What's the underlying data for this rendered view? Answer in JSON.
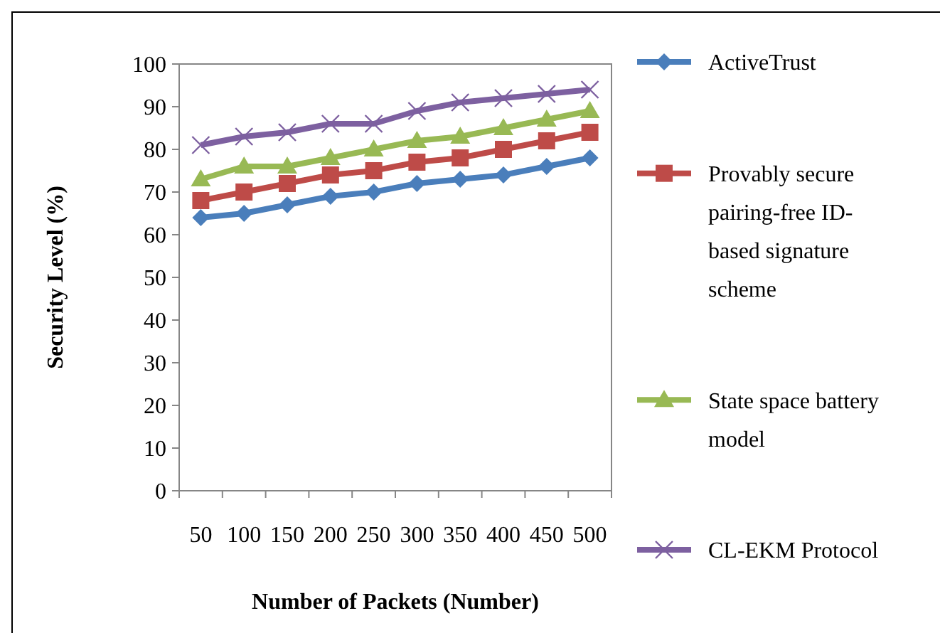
{
  "chart_data": {
    "type": "line",
    "xlabel": "Number of Packets (Number)",
    "ylabel": "Security Level (%)",
    "categories": [
      "50",
      "100",
      "150",
      "200",
      "250",
      "300",
      "350",
      "400",
      "450",
      "500"
    ],
    "ylim": [
      0,
      100
    ],
    "yticks": [
      0,
      10,
      20,
      30,
      40,
      50,
      60,
      70,
      80,
      90,
      100
    ],
    "grid": false,
    "legend": "right",
    "series": [
      {
        "name": "ActiveTrust",
        "color": "#4a7ebb",
        "marker": "diamond",
        "values": [
          64,
          65,
          67,
          69,
          70,
          72,
          73,
          74,
          76,
          78
        ]
      },
      {
        "name": "Provably secure pairing-free ID-based signature scheme",
        "color": "#be4b48",
        "marker": "square",
        "values": [
          68,
          70,
          72,
          74,
          75,
          77,
          78,
          80,
          82,
          84
        ]
      },
      {
        "name": "State space battery model",
        "color": "#98b954",
        "marker": "triangle",
        "values": [
          73,
          76,
          76,
          78,
          80,
          82,
          83,
          85,
          87,
          89
        ]
      },
      {
        "name": "CL-EKM Protocol",
        "color": "#7d60a0",
        "marker": "cross",
        "values": [
          81,
          83,
          84,
          86,
          86,
          89,
          91,
          92,
          93,
          94
        ]
      }
    ]
  }
}
